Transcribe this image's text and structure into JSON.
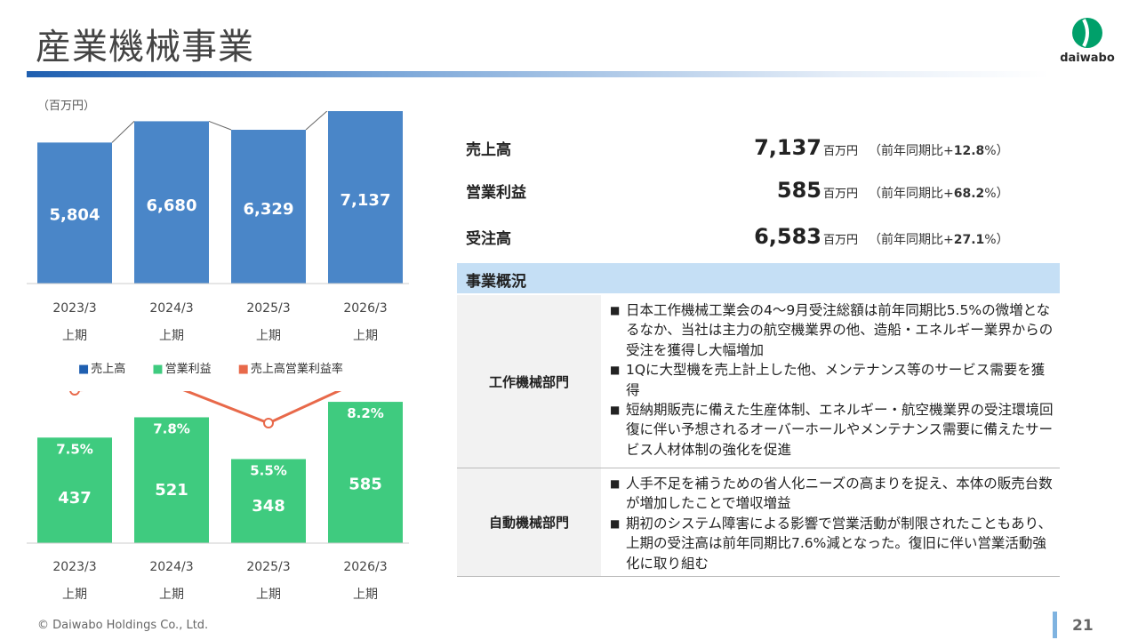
{
  "title": "産業機械事業",
  "logo": {
    "text": "daiwabo",
    "color": "#00a06a"
  },
  "unit_label": "（百万円）",
  "chart_data": [
    {
      "type": "bar",
      "categories": [
        "2023/3 上期",
        "2024/3 上期",
        "2025/3 上期",
        "2026/3 上期"
      ],
      "category_lines": [
        [
          "2023/3",
          "上期"
        ],
        [
          "2024/3",
          "上期"
        ],
        [
          "2025/3",
          "上期"
        ],
        [
          "2026/3",
          "上期"
        ]
      ],
      "series": [
        {
          "name": "売上高",
          "values": [
            5804,
            6680,
            6329,
            7137
          ],
          "labels": [
            "5,804",
            "6,680",
            "6,329",
            "7,137"
          ],
          "color": "#4a86c8"
        }
      ]
    },
    {
      "type": "bar",
      "categories": [
        "2023/3 上期",
        "2024/3 上期",
        "2025/3 上期",
        "2026/3 上期"
      ],
      "category_lines": [
        [
          "2023/3",
          "上期"
        ],
        [
          "2024/3",
          "上期"
        ],
        [
          "2025/3",
          "上期"
        ],
        [
          "2026/3",
          "上期"
        ]
      ],
      "series": [
        {
          "name": "営業利益",
          "values": [
            437,
            521,
            348,
            585
          ],
          "labels": [
            "437",
            "521",
            "348",
            "585"
          ],
          "color": "#3fcb7f"
        },
        {
          "name": "売上高営業利益率",
          "type": "line",
          "values": [
            7.5,
            7.8,
            5.5,
            8.2
          ],
          "labels": [
            "7.5%",
            "7.8%",
            "5.5%",
            "8.2%"
          ],
          "color": "#e8694a"
        }
      ]
    }
  ],
  "legend": [
    {
      "label": "売上高",
      "color": "#1f5fb0"
    },
    {
      "label": "営業利益",
      "color": "#3fcb7f"
    },
    {
      "label": "売上高営業利益率",
      "color": "#e8694a"
    }
  ],
  "kpis": [
    {
      "label": "売上高",
      "value": "7,137",
      "unit": "百万円",
      "yoy_prefix": "（前年同期比+",
      "yoy_value": "12.8",
      "yoy_suffix": "%）"
    },
    {
      "label": "営業利益",
      "value": "585",
      "unit": "百万円",
      "yoy_prefix": "（前年同期比+",
      "yoy_value": "68.2",
      "yoy_suffix": "%）"
    },
    {
      "label": "受注高",
      "value": "6,583",
      "unit": "百万円",
      "yoy_prefix": "（前年同期比+",
      "yoy_value": "27.1",
      "yoy_suffix": "%）"
    }
  ],
  "overview": {
    "heading": "事業概況",
    "segments": [
      {
        "label": "工作機械部門",
        "bullet": "■",
        "items": [
          "日本工作機械工業会の4～9月受注総額は前年同期比5.5%の微増となるなか、当社は主力の航空機業界の他、造船・エネルギー業界からの受注を獲得し大幅増加",
          "1Qに大型機を売上計上した他、メンテナンス等のサービス需要を獲得",
          "短納期販売に備えた生産体制、エネルギー・航空機業界の受注環境回復に伴い予想されるオーバーホールやメンテナンス需要に備えたサービス人材体制の強化を促進"
        ]
      },
      {
        "label": "自動機械部門",
        "bullet": "■",
        "items": [
          "人手不足を補うための省人化ニーズの高まりを捉え、本体の販売台数が増加したことで増収増益",
          "期初のシステム障害による影響で営業活動が制限されたこともあり、上期の受注高は前年同期比7.6%減となった。復旧に伴い営業活動強化に取り組む"
        ]
      }
    ]
  },
  "footer": "© Daiwabo Holdings Co., Ltd.",
  "page_number": "21"
}
